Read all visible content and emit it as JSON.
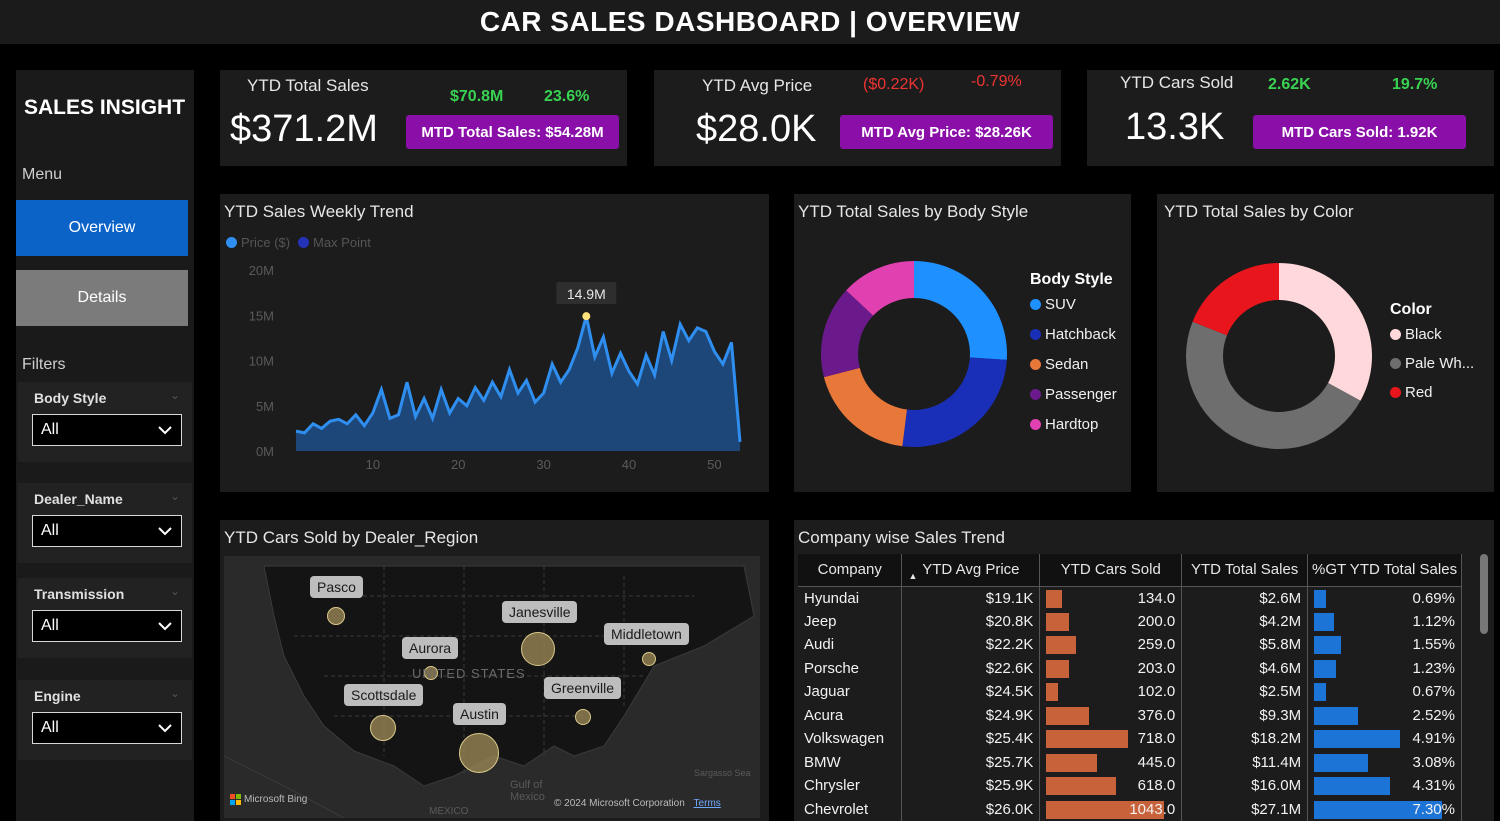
{
  "title": "CAR SALES DASHBOARD | OVERVIEW",
  "sidebar": {
    "brand": "SALES INSIGHT",
    "menu_label": "Menu",
    "nav": [
      {
        "label": "Overview",
        "active": true
      },
      {
        "label": "Details",
        "active": false
      }
    ],
    "filters_label": "Filters",
    "filters": [
      {
        "label": "Body Style",
        "value": "All"
      },
      {
        "label": "Dealer_Name",
        "value": "All"
      },
      {
        "label": "Transmission",
        "value": "All"
      },
      {
        "label": "Engine",
        "value": "All"
      }
    ]
  },
  "kpis": [
    {
      "label": "YTD Total Sales",
      "value": "$371.2M",
      "change_abs": "$70.8M",
      "change_pct": "23.6%",
      "trend": "up",
      "mtd": "MTD Total Sales: $54.28M"
    },
    {
      "label": "YTD Avg Price",
      "value": "$28.0K",
      "change_abs": "($0.22K)",
      "change_pct": "-0.79%",
      "trend": "down",
      "mtd": "MTD Avg Price: $28.26K"
    },
    {
      "label": "YTD Cars Sold",
      "value": "13.3K",
      "change_abs": "2.62K",
      "change_pct": "19.7%",
      "trend": "up",
      "mtd": "MTD Cars Sold: 1.92K"
    }
  ],
  "colors": {
    "accent_blue": "#0b63c8",
    "mtd_purple": "#8a0fa8",
    "green": "#39d353",
    "red": "#ee3333",
    "line_blue": "#2f8ff0",
    "area_blue": "#1d4f8a"
  },
  "chart_data": [
    {
      "type": "area",
      "title": "YTD Sales Weekly Trend",
      "legend": [
        "Price ($)",
        "Max Point"
      ],
      "legend_placement": "top-left",
      "y_ticks": [
        "20M",
        "15M",
        "10M",
        "5M",
        "0M"
      ],
      "x_ticks": [
        "10",
        "20",
        "30",
        "40",
        "50"
      ],
      "ylim": [
        0,
        20000000
      ],
      "xlim": [
        1,
        53
      ],
      "max_point_label": "14.9M",
      "x": [
        1,
        2,
        3,
        4,
        5,
        6,
        7,
        8,
        9,
        10,
        11,
        12,
        13,
        14,
        15,
        16,
        17,
        18,
        19,
        20,
        21,
        22,
        23,
        24,
        25,
        26,
        27,
        28,
        29,
        30,
        31,
        32,
        33,
        34,
        35,
        36,
        37,
        38,
        39,
        40,
        41,
        42,
        43,
        44,
        45,
        46,
        47,
        48,
        49,
        50,
        51,
        52,
        53
      ],
      "values": [
        2.2,
        2.0,
        3.0,
        2.5,
        3.3,
        3.5,
        3.0,
        4.0,
        2.8,
        4.2,
        6.8,
        3.6,
        4.0,
        7.6,
        3.8,
        5.8,
        3.6,
        6.8,
        4.2,
        5.8,
        5.0,
        7.0,
        5.6,
        7.6,
        6.0,
        9.0,
        6.4,
        7.8,
        5.4,
        6.4,
        9.6,
        7.6,
        9.0,
        11.4,
        14.9,
        10.4,
        12.6,
        8.6,
        10.8,
        8.8,
        7.4,
        10.6,
        8.4,
        13.2,
        10.0,
        14.0,
        12.2,
        13.6,
        13.2,
        11.0,
        9.6,
        12.0,
        1.0
      ]
    },
    {
      "type": "pie",
      "title": "YTD Total Sales by Body Style",
      "legend_title": "Body Style",
      "legend_placement": "right",
      "categories": [
        "SUV",
        "Hatchback",
        "Sedan",
        "Passenger",
        "Hardtop"
      ],
      "values": [
        26,
        26,
        19,
        16,
        13
      ],
      "colors": [
        "#1e90ff",
        "#1a2fb8",
        "#e8773a",
        "#6b1a8c",
        "#e040b0"
      ]
    },
    {
      "type": "pie",
      "title": "YTD Total Sales by Color",
      "legend_title": "Color",
      "legend_placement": "right",
      "categories": [
        "Black",
        "Pale Wh...",
        "Red"
      ],
      "values": [
        33,
        48,
        19
      ],
      "colors": [
        "#ffd8dc",
        "#6e6e6e",
        "#e8161c"
      ]
    }
  ],
  "map": {
    "title": "YTD Cars Sold by Dealer_Region",
    "cities": [
      "Pasco",
      "Janesville",
      "Middletown",
      "Aurora",
      "Scottsdale",
      "Greenville",
      "Austin"
    ],
    "country_label": "UNITED STATES",
    "gulf_label": "Gulf of Mexico",
    "mexico_label": "MEXICO",
    "sargasso_label": "Sargasso Sea",
    "bing_label": "Microsoft Bing",
    "copyright": "© 2024 Microsoft Corporation",
    "terms": "Terms"
  },
  "table": {
    "title": "Company wise Sales Trend",
    "columns": [
      "Company",
      "YTD Avg Price",
      "YTD Cars Sold",
      "YTD Total Sales",
      "%GT YTD Total Sales"
    ],
    "rows": [
      {
        "company": "Hyundai",
        "avg_price": "$19.1K",
        "cars_sold": "134.0",
        "cars_sold_num": 134,
        "total_sales": "$2.6M",
        "pct": "0.69%",
        "pct_num": 0.69
      },
      {
        "company": "Jeep",
        "avg_price": "$20.8K",
        "cars_sold": "200.0",
        "cars_sold_num": 200,
        "total_sales": "$4.2M",
        "pct": "1.12%",
        "pct_num": 1.12
      },
      {
        "company": "Audi",
        "avg_price": "$22.2K",
        "cars_sold": "259.0",
        "cars_sold_num": 259,
        "total_sales": "$5.8M",
        "pct": "1.55%",
        "pct_num": 1.55
      },
      {
        "company": "Porsche",
        "avg_price": "$22.6K",
        "cars_sold": "203.0",
        "cars_sold_num": 203,
        "total_sales": "$4.6M",
        "pct": "1.23%",
        "pct_num": 1.23
      },
      {
        "company": "Jaguar",
        "avg_price": "$24.5K",
        "cars_sold": "102.0",
        "cars_sold_num": 102,
        "total_sales": "$2.5M",
        "pct": "0.67%",
        "pct_num": 0.67
      },
      {
        "company": "Acura",
        "avg_price": "$24.9K",
        "cars_sold": "376.0",
        "cars_sold_num": 376,
        "total_sales": "$9.3M",
        "pct": "2.52%",
        "pct_num": 2.52
      },
      {
        "company": "Volkswagen",
        "avg_price": "$25.4K",
        "cars_sold": "718.0",
        "cars_sold_num": 718,
        "total_sales": "$18.2M",
        "pct": "4.91%",
        "pct_num": 4.91
      },
      {
        "company": "BMW",
        "avg_price": "$25.7K",
        "cars_sold": "445.0",
        "cars_sold_num": 445,
        "total_sales": "$11.4M",
        "pct": "3.08%",
        "pct_num": 3.08
      },
      {
        "company": "Chrysler",
        "avg_price": "$25.9K",
        "cars_sold": "618.0",
        "cars_sold_num": 618,
        "total_sales": "$16.0M",
        "pct": "4.31%",
        "pct_num": 4.31
      },
      {
        "company": "Chevrolet",
        "avg_price": "$26.0K",
        "cars_sold": "1043.0",
        "cars_sold_num": 1043,
        "total_sales": "$27.1M",
        "pct": "7.30%",
        "pct_num": 7.3
      }
    ]
  }
}
